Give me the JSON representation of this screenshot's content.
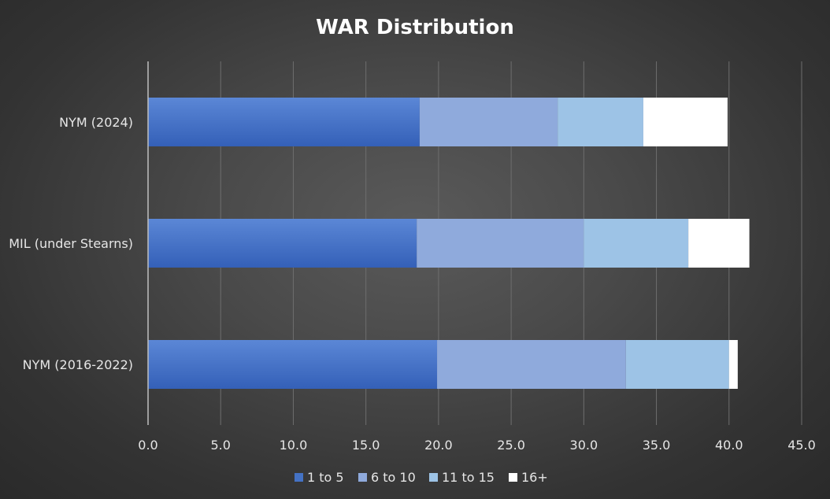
{
  "chart_data": {
    "type": "bar",
    "orientation": "horizontal",
    "stacked": true,
    "title": "WAR Distribution",
    "categories": [
      "NYM (2024)",
      "MIL (under Stearns)",
      "NYM (2016-2022)"
    ],
    "series": [
      {
        "name": "1 to 5",
        "values": [
          18.7,
          18.5,
          19.9
        ],
        "color": "#4472c4"
      },
      {
        "name": "6 to 10",
        "values": [
          9.5,
          11.5,
          13.0
        ],
        "color": "#8faadc"
      },
      {
        "name": "11 to 15",
        "values": [
          5.9,
          7.2,
          7.1
        ],
        "color": "#9dc3e6"
      },
      {
        "name": "16+",
        "values": [
          5.8,
          4.2,
          0.6
        ],
        "color": "#ffffff"
      }
    ],
    "xlim": [
      0,
      45
    ],
    "xticks": [
      "0.0",
      "5.0",
      "10.0",
      "15.0",
      "20.0",
      "25.0",
      "30.0",
      "35.0",
      "40.0",
      "45.0"
    ],
    "grid": true,
    "legend": "bottom"
  }
}
